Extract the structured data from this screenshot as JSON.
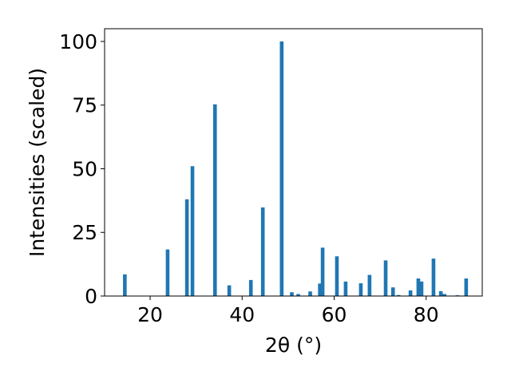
{
  "chart_data": {
    "type": "bar",
    "xlabel": "2θ (°)",
    "ylabel": "Intensities (scaled)",
    "xlim": [
      10.1,
      92.2
    ],
    "ylim": [
      0,
      105
    ],
    "xticks": [
      20,
      40,
      60,
      80
    ],
    "yticks": [
      0,
      25,
      50,
      75,
      100
    ],
    "xtick_labels": [
      "20",
      "40",
      "60",
      "80"
    ],
    "ytick_labels": [
      "0",
      "25",
      "50",
      "75",
      "100"
    ],
    "bar_color": "#1f77b4",
    "bar_width": 0.8,
    "grid": false,
    "x": [
      14.5,
      23.8,
      28.0,
      29.2,
      34.1,
      37.2,
      41.9,
      44.5,
      48.6,
      50.8,
      52.2,
      54.8,
      56.9,
      57.5,
      60.6,
      62.5,
      65.8,
      67.7,
      71.2,
      72.8,
      74.0,
      76.6,
      78.3,
      79.0,
      81.6,
      83.2,
      84.0,
      86.8,
      88.7
    ],
    "y": [
      8.5,
      18.3,
      38.0,
      51.0,
      75.3,
      4.2,
      6.3,
      34.8,
      100.0,
      1.5,
      0.8,
      1.8,
      4.9,
      19.0,
      15.6,
      5.7,
      5.0,
      8.3,
      14.0,
      3.4,
      0.4,
      2.2,
      6.9,
      5.7,
      14.7,
      1.9,
      0.8,
      0.3,
      6.9
    ]
  }
}
